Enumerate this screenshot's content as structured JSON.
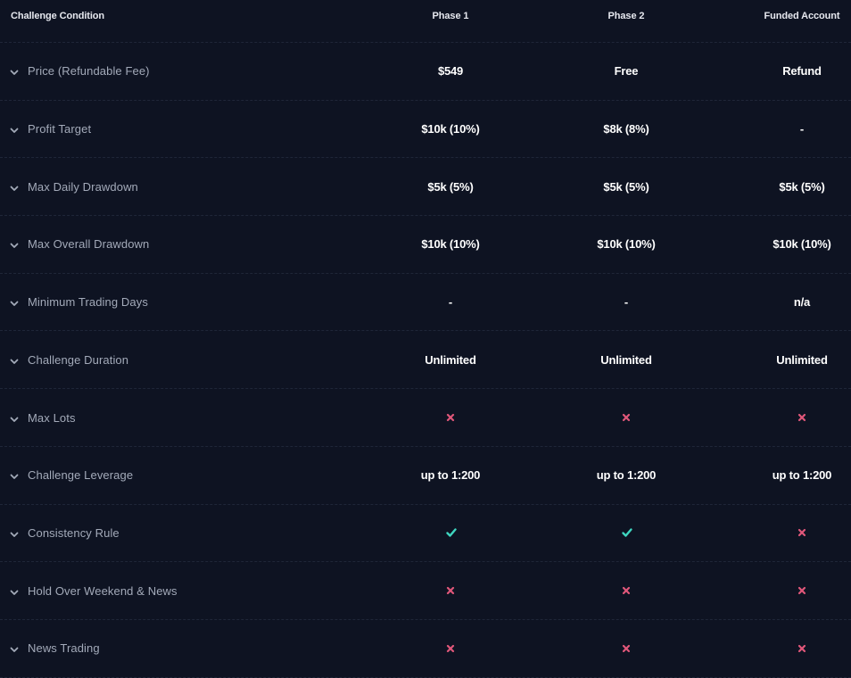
{
  "header": {
    "condition": "Challenge Condition",
    "phase1": "Phase 1",
    "phase2": "Phase 2",
    "funded": "Funded Account"
  },
  "colors": {
    "background": "#0e1322",
    "cross": "#e0577a",
    "check": "#3fd6c0",
    "label": "#a3aab9"
  },
  "rows": [
    {
      "label": "Price (Refundable Fee)",
      "cells": [
        {
          "type": "text",
          "value": "$549"
        },
        {
          "type": "text",
          "value": "Free"
        },
        {
          "type": "text",
          "value": "Refund"
        }
      ]
    },
    {
      "label": "Profit Target",
      "cells": [
        {
          "type": "text",
          "value": "$10k (10%)"
        },
        {
          "type": "text",
          "value": "$8k (8%)"
        },
        {
          "type": "text",
          "value": "-"
        }
      ]
    },
    {
      "label": "Max Daily Drawdown",
      "cells": [
        {
          "type": "text",
          "value": "$5k (5%)"
        },
        {
          "type": "text",
          "value": "$5k (5%)"
        },
        {
          "type": "text",
          "value": "$5k (5%)"
        }
      ]
    },
    {
      "label": "Max Overall Drawdown",
      "cells": [
        {
          "type": "text",
          "value": "$10k (10%)"
        },
        {
          "type": "text",
          "value": "$10k (10%)"
        },
        {
          "type": "text",
          "value": "$10k (10%)"
        }
      ]
    },
    {
      "label": "Minimum Trading Days",
      "cells": [
        {
          "type": "text",
          "value": "-"
        },
        {
          "type": "text",
          "value": "-"
        },
        {
          "type": "text",
          "value": "n/a"
        }
      ]
    },
    {
      "label": "Challenge Duration",
      "cells": [
        {
          "type": "text",
          "value": "Unlimited"
        },
        {
          "type": "text",
          "value": "Unlimited"
        },
        {
          "type": "text",
          "value": "Unlimited"
        }
      ]
    },
    {
      "label": "Max Lots",
      "cells": [
        {
          "type": "icon",
          "value": "cross-icon"
        },
        {
          "type": "icon",
          "value": "cross-icon"
        },
        {
          "type": "icon",
          "value": "cross-icon"
        }
      ]
    },
    {
      "label": "Challenge Leverage",
      "cells": [
        {
          "type": "text",
          "value": "up to 1:200"
        },
        {
          "type": "text",
          "value": "up to 1:200"
        },
        {
          "type": "text",
          "value": "up to 1:200"
        }
      ]
    },
    {
      "label": "Consistency Rule",
      "cells": [
        {
          "type": "icon",
          "value": "check-icon"
        },
        {
          "type": "icon",
          "value": "check-icon"
        },
        {
          "type": "icon",
          "value": "cross-icon"
        }
      ]
    },
    {
      "label": "Hold Over Weekend & News",
      "cells": [
        {
          "type": "icon",
          "value": "cross-icon"
        },
        {
          "type": "icon",
          "value": "cross-icon"
        },
        {
          "type": "icon",
          "value": "cross-icon"
        }
      ]
    },
    {
      "label": "News Trading",
      "cells": [
        {
          "type": "icon",
          "value": "cross-icon"
        },
        {
          "type": "icon",
          "value": "cross-icon"
        },
        {
          "type": "icon",
          "value": "cross-icon"
        }
      ]
    }
  ]
}
